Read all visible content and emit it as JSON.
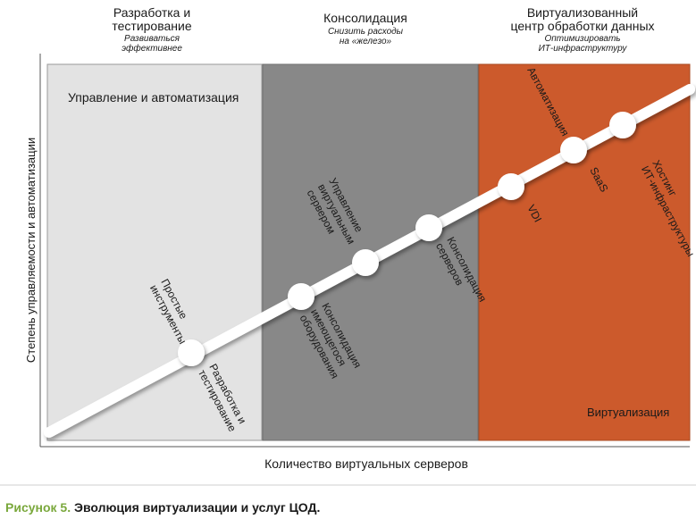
{
  "phases": [
    {
      "title_line1": "Разработка и",
      "title_line2": "тестирование",
      "subtitle_line1": "Развиваться",
      "subtitle_line2": "эффективнее",
      "zone_label": "Управление и автоматизация",
      "color": "#e3e3e3"
    },
    {
      "title_line1": "Консолидация",
      "subtitle_line1": "Снизить расходы",
      "subtitle_line2": "на «железо»",
      "color": "#888888"
    },
    {
      "title_line1": "Виртуализованный",
      "title_line2": "центр обработки данных",
      "subtitle_line1": "Оптимизировать",
      "subtitle_line2": "ИТ-инфраструктуру",
      "zone_label": "Виртуализация",
      "color": "#cc5a2c"
    }
  ],
  "axes": {
    "y_label": "Степень управляемости и автоматизации",
    "x_label": "Количество виртуальных серверов"
  },
  "milestones": {
    "m1": {
      "above_line1": "Простые",
      "above_line2": "инструменты",
      "below_line1": "Разработка и",
      "below_line2": "тестирование"
    },
    "m2": {
      "below_line1": "Консолидация",
      "below_line2": "имеющегося",
      "below_line3": "оборудования"
    },
    "m3": {
      "above_line1": "Управление",
      "above_line2": "виртуальным",
      "above_line3": "сервером"
    },
    "m4": {
      "below_line1": "Консолидация",
      "below_line2": "серверов"
    },
    "m5": {
      "below_line1": "VDI"
    },
    "m6": {
      "above_line1": "Автоматизация",
      "below_line1": "SaaS"
    },
    "m7": {
      "below_line1": "Хостинг",
      "below_line2": "ИТ-инфраструктуры"
    }
  },
  "caption": {
    "number": "Рисунок 5.",
    "text": "Эволюция виртуализации и услуг ЦОД."
  },
  "colors": {
    "line": "#ffffff",
    "shadow": "#555555",
    "caption_accent": "#7aa83c"
  }
}
